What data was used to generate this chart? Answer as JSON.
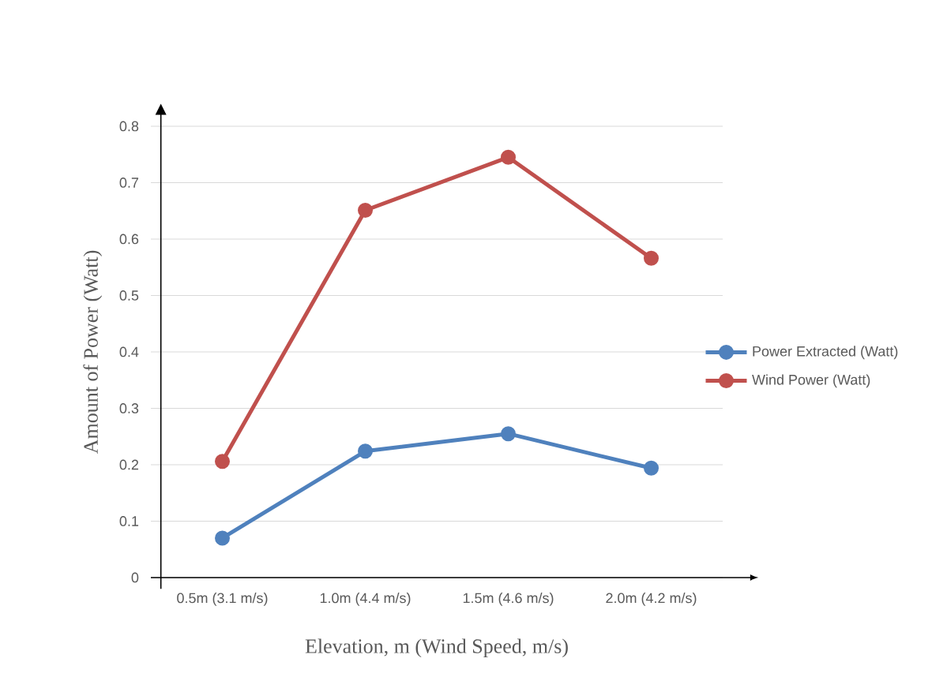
{
  "chart_data": {
    "type": "line",
    "xlabel": "Elevation, m (Wind Speed, m/s)",
    "ylabel": "Amount of Power (Watt)",
    "categories": [
      "0.5m (3.1 m/s)",
      "1.0m (4.4 m/s)",
      "1.5m (4.6 m/s)",
      "2.0m (4.2 m/s)"
    ],
    "series": [
      {
        "name": "Power Extracted (Watt)",
        "color": "#4f81bd",
        "values": [
          0.07,
          0.224,
          0.255,
          0.194
        ]
      },
      {
        "name": "Wind Power (Watt)",
        "color": "#c0504d",
        "values": [
          0.206,
          0.651,
          0.745,
          0.566
        ]
      }
    ],
    "ylim": [
      0,
      0.8
    ],
    "yticks": [
      0,
      0.1,
      0.2,
      0.3,
      0.4,
      0.5,
      0.6,
      0.7,
      0.8
    ],
    "grid": "y",
    "legend": "right",
    "marker": "circle",
    "line_style": "solid"
  }
}
